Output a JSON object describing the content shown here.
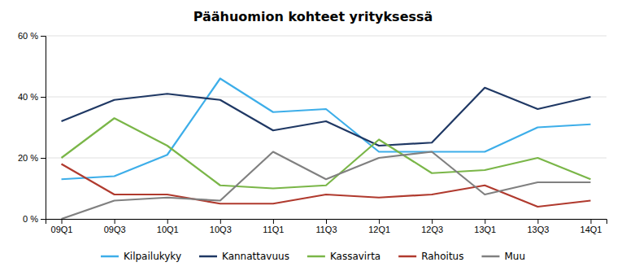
{
  "chart_data": {
    "type": "line",
    "title": "Päähuomion kohteet yrityksessä",
    "categories": [
      "09Q1",
      "09Q3",
      "10Q1",
      "10Q3",
      "11Q1",
      "11Q3",
      "12Q1",
      "12Q3",
      "13Q1",
      "13Q3",
      "14Q1"
    ],
    "series": [
      {
        "name": "Kilpailukyky",
        "color": "#3DAEE9",
        "values": [
          13,
          14,
          21,
          46,
          35,
          36,
          22,
          22,
          22,
          30,
          31
        ]
      },
      {
        "name": "Kannattavuus",
        "color": "#1F3864",
        "values": [
          32,
          39,
          41,
          39,
          29,
          32,
          24,
          25,
          43,
          36,
          40
        ]
      },
      {
        "name": "Kassavirta",
        "color": "#7AB648",
        "values": [
          20,
          33,
          24,
          11,
          10,
          11,
          26,
          15,
          16,
          20,
          13
        ]
      },
      {
        "name": "Rahoitus",
        "color": "#B03A2E",
        "values": [
          18,
          8,
          8,
          5,
          5,
          8,
          7,
          8,
          11,
          4,
          6
        ]
      },
      {
        "name": "Muu",
        "color": "#808080",
        "values": [
          0,
          6,
          7,
          6,
          22,
          13,
          20,
          22,
          8,
          12,
          12
        ]
      }
    ],
    "ylim": [
      0,
      60
    ],
    "yticks": [
      {
        "value": 0,
        "label": "0 %"
      },
      {
        "value": 20,
        "label": "20 %"
      },
      {
        "value": 40,
        "label": "40 %"
      },
      {
        "value": 60,
        "label": "60 %"
      }
    ],
    "grid": true,
    "legend": "bottom"
  }
}
